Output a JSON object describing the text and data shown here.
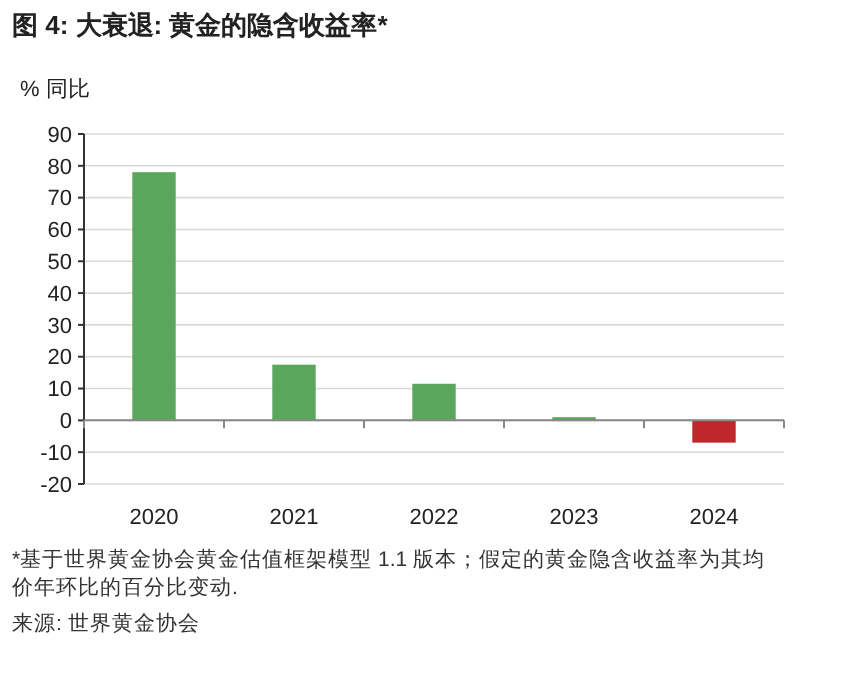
{
  "chart_data": {
    "type": "bar",
    "title": "图 4: 大衰退: 黄金的隐含收益率*",
    "ylabel": "% 同比",
    "categories": [
      "2020",
      "2021",
      "2022",
      "2023",
      "2024"
    ],
    "values": [
      78,
      17.5,
      11.5,
      1,
      -7
    ],
    "colors": [
      "#5aa65d",
      "#5aa65d",
      "#5aa65d",
      "#5aa65d",
      "#c0272d"
    ],
    "ylim": [
      -20,
      90
    ],
    "yticks": [
      -20,
      -10,
      0,
      10,
      20,
      30,
      40,
      50,
      60,
      70,
      80,
      90
    ],
    "grid": "y",
    "annotations": [
      "*基于世界黄金协会黄金估值框架模型 1.1 版本；假定的黄金隐含收益率为其均价年环比的百分比变动.",
      "来源: 世界黄金协会"
    ]
  }
}
